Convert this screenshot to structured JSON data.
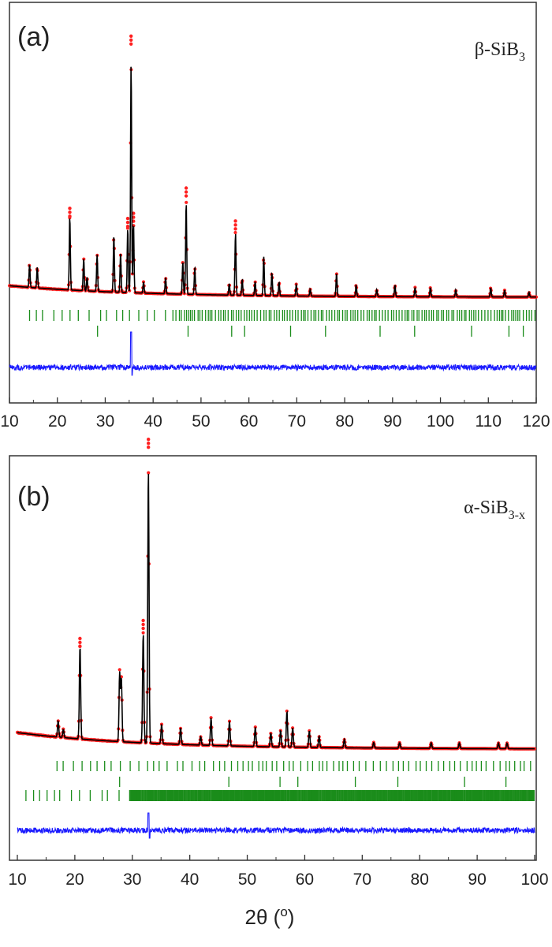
{
  "xlabel": "2θ (o)",
  "colors": {
    "observed": "#ff2020",
    "calculated": "#000000",
    "difference": "#1a1aff",
    "reflections": "#1a8c1a"
  },
  "chart_data": [
    {
      "panel": "(a)",
      "phase": "β-SiB",
      "phase_sub": "3",
      "type": "line",
      "x_range": [
        10,
        120
      ],
      "x_ticks": [
        10,
        20,
        30,
        40,
        50,
        60,
        70,
        80,
        90,
        100,
        110,
        120
      ],
      "series_names": [],
      "background": {
        "start": 0.05,
        "end": 0.0
      },
      "peaks": [
        [
          14.2,
          0.1
        ],
        [
          15.8,
          0.09
        ],
        [
          22.6,
          0.32
        ],
        [
          25.5,
          0.14
        ],
        [
          26.2,
          0.06
        ],
        [
          28.3,
          0.16
        ],
        [
          31.8,
          0.25
        ],
        [
          33.2,
          0.17
        ],
        [
          34.7,
          0.28
        ],
        [
          35.4,
          1.0
        ],
        [
          35.9,
          0.3
        ],
        [
          38.0,
          0.05
        ],
        [
          42.6,
          0.07
        ],
        [
          46.2,
          0.14
        ],
        [
          46.9,
          0.4
        ],
        [
          48.7,
          0.12
        ],
        [
          55.9,
          0.05
        ],
        [
          57.2,
          0.27
        ],
        [
          58.6,
          0.07
        ],
        [
          61.3,
          0.06
        ],
        [
          63.1,
          0.17
        ],
        [
          64.8,
          0.1
        ],
        [
          66.3,
          0.06
        ],
        [
          69.9,
          0.05
        ],
        [
          72.8,
          0.03
        ],
        [
          78.3,
          0.1
        ],
        [
          82.4,
          0.05
        ],
        [
          86.7,
          0.03
        ],
        [
          90.5,
          0.05
        ],
        [
          94.7,
          0.04
        ],
        [
          97.9,
          0.04
        ],
        [
          103.2,
          0.03
        ],
        [
          110.5,
          0.04
        ],
        [
          113.4,
          0.03
        ],
        [
          118.5,
          0.02
        ]
      ],
      "reflections_row1": {
        "from": 14.2,
        "to": 120,
        "step": 0.55,
        "sparse_below": 44,
        "sparse_step": 1.8
      },
      "reflections_row2": [
        28.4,
        47.3,
        56.4,
        59.1,
        68.7,
        76.0,
        87.4,
        94.6,
        106.5,
        114.3,
        117.3
      ]
    },
    {
      "panel": "(b)",
      "phase": "α-SiB",
      "phase_sub": "3-x",
      "type": "line",
      "x_range": [
        10,
        100
      ],
      "x_ticks": [
        10,
        20,
        30,
        40,
        50,
        60,
        70,
        80,
        90,
        100
      ],
      "series_names": [],
      "background": {
        "start": 0.06,
        "end": 0.0
      },
      "peaks": [
        [
          17.1,
          0.06
        ],
        [
          18.0,
          0.03
        ],
        [
          20.9,
          0.34
        ],
        [
          27.8,
          0.25
        ],
        [
          28.1,
          0.23
        ],
        [
          31.9,
          0.4
        ],
        [
          32.8,
          1.0
        ],
        [
          35.1,
          0.07
        ],
        [
          38.4,
          0.06
        ],
        [
          41.9,
          0.03
        ],
        [
          43.7,
          0.1
        ],
        [
          46.9,
          0.09
        ],
        [
          51.4,
          0.07
        ],
        [
          54.1,
          0.05
        ],
        [
          55.8,
          0.06
        ],
        [
          56.9,
          0.13
        ],
        [
          57.9,
          0.07
        ],
        [
          60.8,
          0.06
        ],
        [
          62.5,
          0.04
        ],
        [
          66.9,
          0.03
        ],
        [
          72.0,
          0.02
        ],
        [
          76.5,
          0.02
        ],
        [
          82.0,
          0.02
        ],
        [
          86.9,
          0.02
        ],
        [
          93.7,
          0.02
        ],
        [
          95.2,
          0.02
        ]
      ],
      "reflections_row1": {
        "from": 16.9,
        "to": 100,
        "step": 0.95,
        "sparse_below": 45,
        "sparse_step": 1.3
      },
      "reflections_row2": [
        27.8,
        46.8,
        55.7,
        58.8,
        68.8,
        76.2,
        87.8,
        95.0
      ],
      "reflections_row3": {
        "from": 11.5,
        "to": 100,
        "step": 0.12,
        "sparse_below": 28,
        "sparse_step": 1.5
      }
    }
  ]
}
